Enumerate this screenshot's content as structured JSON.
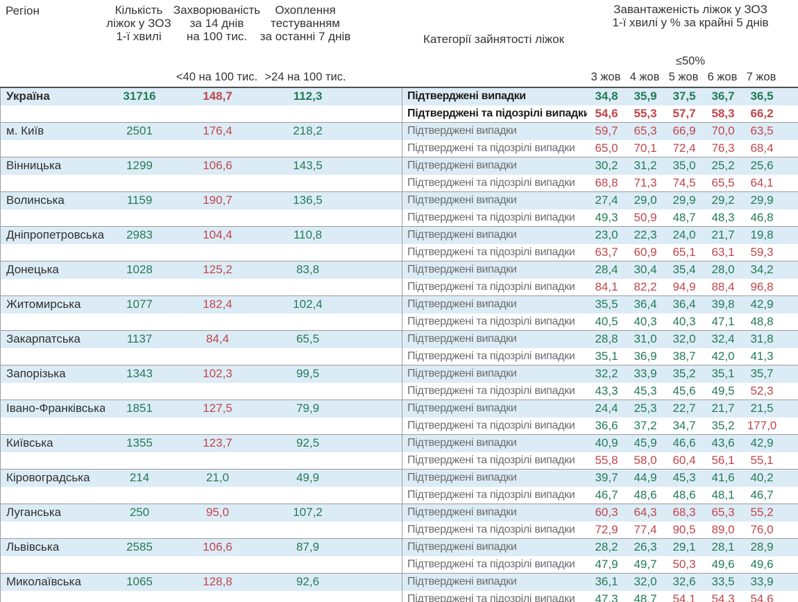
{
  "header": {
    "region": "Регіон",
    "beds": "Кількість\nліжок у ЗОЗ\n1-ї хвилі",
    "incidence": "Захворюваність\nза 14 днів\nна 100 тис.",
    "testing": "Охоплення\nтестуванням\nза останні 7 днів",
    "categories": "Категорії зайнятості ліжок",
    "load": "Завантаженість ліжок у ЗОЗ\n1-ї хвилі у % за крайні 5 днів",
    "threshold_load": "≤50%",
    "threshold_incidence": "<40 на 100 тис.",
    "threshold_testing": ">24 на 100 тис.",
    "dates": [
      "3 жов",
      "4 жов",
      "5 жов",
      "6 жов",
      "7 жов"
    ]
  },
  "labels": {
    "confirmed": "Підтверджені випадки",
    "confirmed_suspected": "Підтверджені та підозрілі випадки"
  },
  "colors": {
    "good": "#237a57",
    "bad": "#c0454b",
    "row_highlight": "#dcecf6"
  },
  "thresholds": {
    "incidence_max_good": 40,
    "testing_min_good": 24,
    "load_max_good": 50
  },
  "rows": [
    {
      "region": "Україна",
      "bold": true,
      "beds": "31716",
      "incidence": "148,7",
      "testing": "112,3",
      "confirmed": [
        "34,8",
        "35,9",
        "37,5",
        "36,7",
        "36,5"
      ],
      "suspected": [
        "54,6",
        "55,3",
        "57,7",
        "58,3",
        "66,2"
      ]
    },
    {
      "region": "м. Київ",
      "bold": false,
      "beds": "2501",
      "incidence": "176,4",
      "testing": "218,2",
      "confirmed": [
        "59,7",
        "65,3",
        "66,9",
        "70,0",
        "63,5"
      ],
      "suspected": [
        "65,0",
        "70,1",
        "72,4",
        "76,3",
        "68,4"
      ]
    },
    {
      "region": "Вінницька",
      "bold": false,
      "beds": "1299",
      "incidence": "106,6",
      "testing": "143,5",
      "confirmed": [
        "30,2",
        "31,2",
        "35,0",
        "25,2",
        "25,6"
      ],
      "suspected": [
        "68,8",
        "71,3",
        "74,5",
        "65,5",
        "64,1"
      ]
    },
    {
      "region": "Волинська",
      "bold": false,
      "beds": "1159",
      "incidence": "190,7",
      "testing": "136,5",
      "confirmed": [
        "27,4",
        "29,0",
        "29,9",
        "29,2",
        "29,9"
      ],
      "suspected": [
        "49,3",
        "50,9",
        "48,7",
        "48,3",
        "46,8"
      ]
    },
    {
      "region": "Дніпропетровська",
      "bold": false,
      "beds": "2983",
      "incidence": "104,4",
      "testing": "110,8",
      "confirmed": [
        "23,0",
        "22,3",
        "24,0",
        "21,7",
        "19,8"
      ],
      "suspected": [
        "63,7",
        "60,9",
        "65,1",
        "63,1",
        "59,3"
      ]
    },
    {
      "region": "Донецька",
      "bold": false,
      "beds": "1028",
      "incidence": "125,2",
      "testing": "83,8",
      "confirmed": [
        "28,4",
        "30,4",
        "35,4",
        "28,0",
        "34,2"
      ],
      "suspected": [
        "84,1",
        "82,2",
        "94,9",
        "88,4",
        "96,8"
      ]
    },
    {
      "region": "Житомирська",
      "bold": false,
      "beds": "1077",
      "incidence": "182,4",
      "testing": "102,4",
      "confirmed": [
        "35,5",
        "36,4",
        "36,4",
        "39,8",
        "42,9"
      ],
      "suspected": [
        "40,5",
        "40,3",
        "40,3",
        "47,1",
        "48,8"
      ]
    },
    {
      "region": "Закарпатська",
      "bold": false,
      "beds": "1137",
      "incidence": "84,4",
      "testing": "65,5",
      "confirmed": [
        "28,8",
        "31,0",
        "32,0",
        "32,4",
        "31,8"
      ],
      "suspected": [
        "35,1",
        "36,9",
        "38,7",
        "42,0",
        "41,3"
      ]
    },
    {
      "region": "Запорізька",
      "bold": false,
      "beds": "1343",
      "incidence": "102,3",
      "testing": "99,5",
      "confirmed": [
        "32,2",
        "33,9",
        "35,2",
        "35,1",
        "35,7"
      ],
      "suspected": [
        "43,3",
        "45,3",
        "45,6",
        "49,5",
        "52,3"
      ]
    },
    {
      "region": "Івано-Франківська",
      "bold": false,
      "beds": "1851",
      "incidence": "127,5",
      "testing": "79,9",
      "confirmed": [
        "24,4",
        "25,3",
        "22,7",
        "21,7",
        "21,5"
      ],
      "suspected": [
        "36,6",
        "37,2",
        "34,7",
        "35,2",
        "177,0"
      ]
    },
    {
      "region": "Київська",
      "bold": false,
      "beds": "1355",
      "incidence": "123,7",
      "testing": "92,5",
      "confirmed": [
        "40,9",
        "45,9",
        "46,6",
        "43,6",
        "42,9"
      ],
      "suspected": [
        "55,8",
        "58,0",
        "60,4",
        "56,1",
        "55,1"
      ]
    },
    {
      "region": "Кіровоградська",
      "bold": false,
      "beds": "214",
      "incidence": "21,0",
      "testing": "49,9",
      "confirmed": [
        "39,7",
        "44,9",
        "45,3",
        "41,6",
        "40,2"
      ],
      "suspected": [
        "46,7",
        "48,6",
        "48,6",
        "48,1",
        "46,7"
      ]
    },
    {
      "region": "Луганська",
      "bold": false,
      "beds": "250",
      "incidence": "95,0",
      "testing": "107,2",
      "confirmed": [
        "60,3",
        "64,3",
        "68,3",
        "65,3",
        "55,2"
      ],
      "suspected": [
        "72,9",
        "77,4",
        "90,5",
        "89,0",
        "76,0"
      ]
    },
    {
      "region": "Львівська",
      "bold": false,
      "beds": "2585",
      "incidence": "106,6",
      "testing": "87,9",
      "confirmed": [
        "28,2",
        "26,3",
        "29,1",
        "28,1",
        "28,9"
      ],
      "suspected": [
        "47,9",
        "49,7",
        "50,3",
        "49,6",
        "49,6"
      ]
    },
    {
      "region": "Миколаївська",
      "bold": false,
      "beds": "1065",
      "incidence": "128,8",
      "testing": "92,6",
      "confirmed": [
        "36,1",
        "32,0",
        "32,6",
        "33,5",
        "33,9"
      ],
      "suspected": [
        "47,3",
        "48,7",
        "54,1",
        "54,3",
        "54,6"
      ]
    }
  ]
}
